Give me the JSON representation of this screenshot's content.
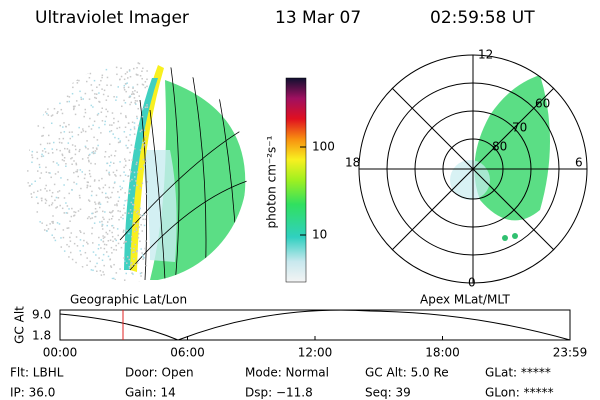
{
  "header": {
    "title": "Ultraviolet Imager",
    "date": "13 Mar 07",
    "time": "02:59:58 UT"
  },
  "colorbar": {
    "label": "photon cm⁻²s⁻¹",
    "ticks": [
      "100",
      "10"
    ]
  },
  "polar": {
    "mlt": [
      "12",
      "18",
      "6",
      "0"
    ],
    "mlat": [
      "60",
      "70",
      "80"
    ]
  },
  "panels": {
    "left": "Geographic Lat/Lon",
    "right": "Apex MLat/MLT"
  },
  "altitude": {
    "label": "GC Alt",
    "yticks": [
      "9.0",
      "1.8"
    ],
    "xticks": [
      "00:00",
      "06:00",
      "12:00",
      "18:00",
      "23:59"
    ]
  },
  "footer": {
    "rows": [
      [
        "Flt: LBHL",
        "Door: Open",
        "Mode: Normal",
        "GC Alt: 5.0 Re",
        "GLat: *****"
      ],
      [
        "IP: 36.0",
        "Gain: 14",
        "Dsp: −11.8",
        "Seq: 39",
        "GLon: *****"
      ]
    ]
  }
}
